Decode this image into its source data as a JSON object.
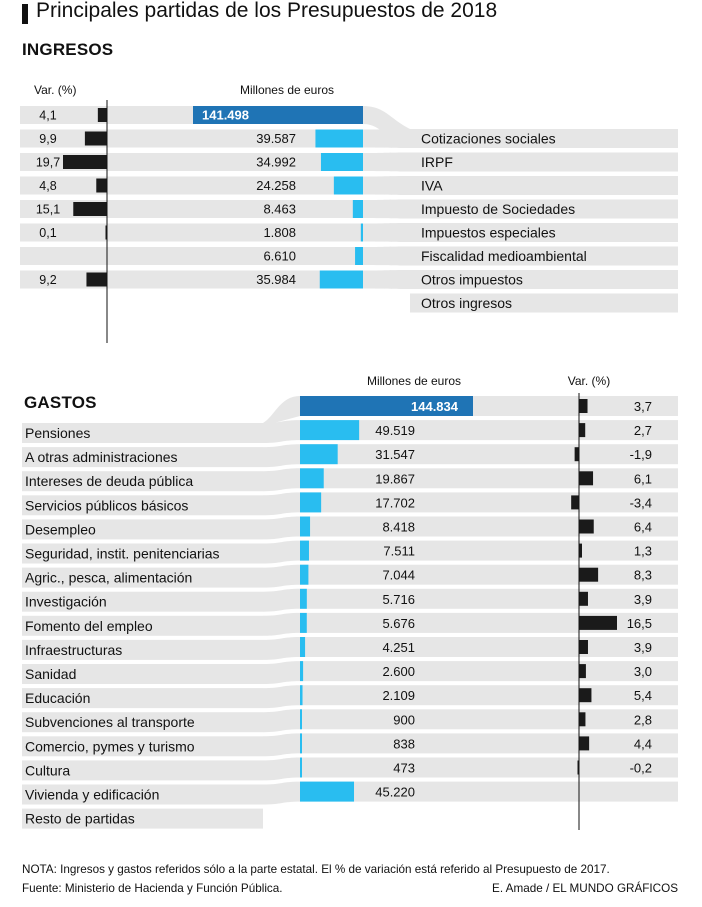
{
  "title": "Principales partidas de los Presupuestos de 2018",
  "colors": {
    "bar": "#29bdf0",
    "total_bar": "#1f74b5",
    "var_bar": "#1a1a1a",
    "row_bg": "#e6e6e6",
    "flow": "#e6e6e6"
  },
  "chart_data": [
    {
      "type": "bar",
      "section": "INGRESOS",
      "var_header": "Var. (%)",
      "value_header": "Millones de euros",
      "total": {
        "value": 141498,
        "label": "141.498"
      },
      "rows": [
        {
          "category": "Cotizaciones sociales",
          "value": 39587,
          "value_label": "39.587",
          "var": 9.9,
          "var_label": "9,9"
        },
        {
          "category": "IRPF",
          "value": 34992,
          "value_label": "34.992",
          "var": 19.7,
          "var_label": "19,7"
        },
        {
          "category": "IVA",
          "value": 24258,
          "value_label": "24.258",
          "var": 4.8,
          "var_label": "4,8"
        },
        {
          "category": "Impuesto de Sociedades",
          "value": 8463,
          "value_label": "8.463",
          "var": 15.1,
          "var_label": "15,1"
        },
        {
          "category": "Impuestos especiales",
          "value": 1808,
          "value_label": "1.808",
          "var": 0.1,
          "var_label": "0,1"
        },
        {
          "category": "Fiscalidad medioambiental",
          "value": 6610,
          "value_label": "6.610",
          "var": null,
          "var_label": ""
        },
        {
          "category": "Otros impuestos",
          "value": 35984,
          "value_label": "35.984",
          "var": 9.2,
          "var_label": "9,2"
        },
        {
          "category": "Otros ingresos",
          "value": null,
          "value_label": "",
          "var": null,
          "var_label": ""
        }
      ],
      "total_var": {
        "var": 4.1,
        "var_label": "4,1"
      }
    },
    {
      "type": "bar",
      "section": "GASTOS",
      "var_header": "Var. (%)",
      "value_header": "Millones de euros",
      "total": {
        "value": 144834,
        "label": "144.834",
        "var": 3.7,
        "var_label": "3,7"
      },
      "rows": [
        {
          "category": "Pensiones",
          "value": 49519,
          "value_label": "49.519",
          "var": 2.7,
          "var_label": "2,7"
        },
        {
          "category": "A otras administraciones",
          "value": 31547,
          "value_label": "31.547",
          "var": -1.9,
          "var_label": "-1,9"
        },
        {
          "category": "Intereses de deuda pública",
          "value": 19867,
          "value_label": "19.867",
          "var": 6.1,
          "var_label": "6,1"
        },
        {
          "category": "Servicios públicos básicos",
          "value": 17702,
          "value_label": "17.702",
          "var": -3.4,
          "var_label": "-3,4"
        },
        {
          "category": "Desempleo",
          "value": 8418,
          "value_label": "8.418",
          "var": 6.4,
          "var_label": "6,4"
        },
        {
          "category": "Seguridad, instit. penitenciarias",
          "value": 7511,
          "value_label": "7.511",
          "var": 1.3,
          "var_label": "1,3"
        },
        {
          "category": "Agric., pesca, alimentación",
          "value": 7044,
          "value_label": "7.044",
          "var": 8.3,
          "var_label": "8,3"
        },
        {
          "category": "Investigación",
          "value": 5716,
          "value_label": "5.716",
          "var": 3.9,
          "var_label": "3,9"
        },
        {
          "category": "Fomento del empleo",
          "value": 5676,
          "value_label": "5.676",
          "var": 16.5,
          "var_label": "16,5"
        },
        {
          "category": "Infraestructuras",
          "value": 4251,
          "value_label": "4.251",
          "var": 3.9,
          "var_label": "3,9"
        },
        {
          "category": "Sanidad",
          "value": 2600,
          "value_label": "2.600",
          "var": 3.0,
          "var_label": "3,0"
        },
        {
          "category": "Educación",
          "value": 2109,
          "value_label": "2.109",
          "var": 5.4,
          "var_label": "5,4"
        },
        {
          "category": "Subvenciones al transporte",
          "value": 900,
          "value_label": "900",
          "var": 2.8,
          "var_label": "2,8"
        },
        {
          "category": "Comercio, pymes y turismo",
          "value": 838,
          "value_label": "838",
          "var": 4.4,
          "var_label": "4,4"
        },
        {
          "category": "Cultura",
          "value": 473,
          "value_label": "473",
          "var": -0.2,
          "var_label": "-0,2"
        },
        {
          "category": "Vivienda y edificación",
          "value": 45220,
          "value_label": "45.220",
          "var": null,
          "var_label": ""
        },
        {
          "category": "Resto de partidas",
          "value": null,
          "value_label": "",
          "var": null,
          "var_label": ""
        }
      ]
    }
  ],
  "note": "NOTA: Ingresos y gastos referidos sólo a la parte estatal. El % de variación está referido al Presupuesto de 2017.",
  "source": "Fuente: Ministerio de Hacienda y Función Pública.",
  "credit": "E. Amade / EL MUNDO GRÁFICOS"
}
